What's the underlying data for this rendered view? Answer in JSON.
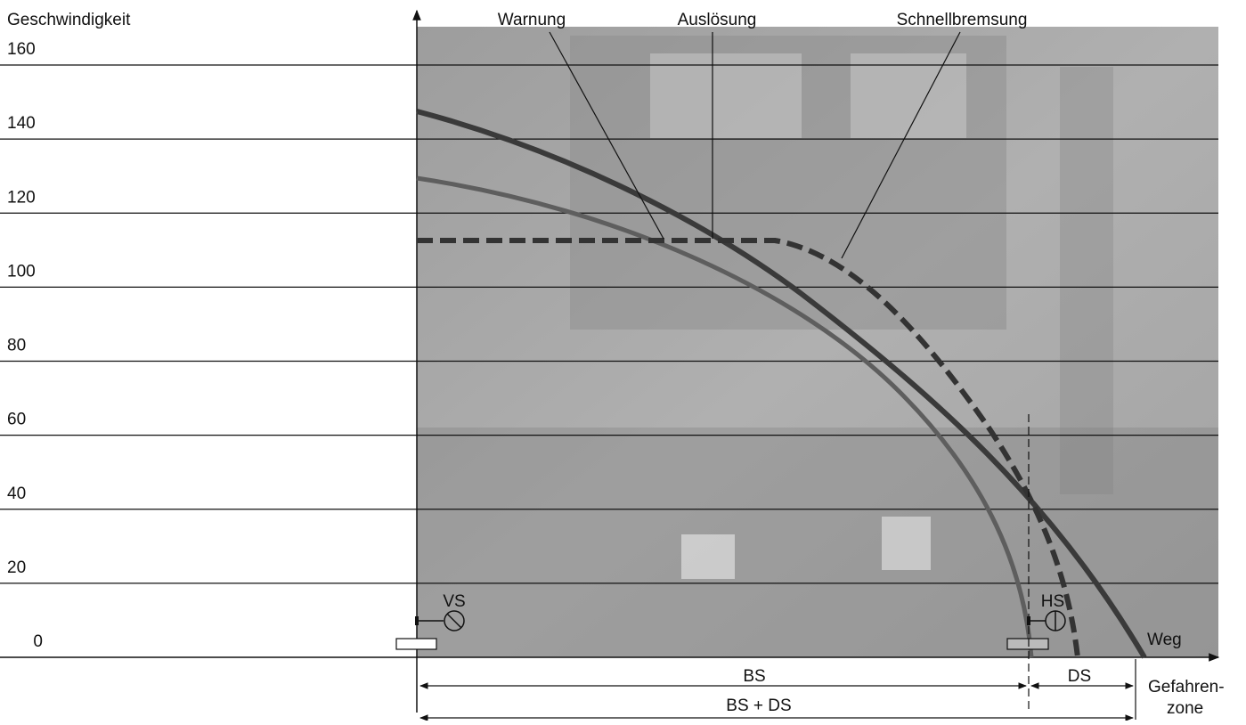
{
  "y_axis": {
    "label": "Geschwindigkeit",
    "ticks": [
      0,
      20,
      40,
      60,
      80,
      100,
      120,
      140,
      160
    ]
  },
  "x_axis": {
    "label": "Weg"
  },
  "curve_labels": [
    "Warnung",
    "Auslösung",
    "Schnellbremsung"
  ],
  "markers": [
    "VS",
    "HS"
  ],
  "dimensions": [
    "BS",
    "DS",
    "BS + DS"
  ],
  "zone": [
    "Gefahren-",
    "zone"
  ]
}
